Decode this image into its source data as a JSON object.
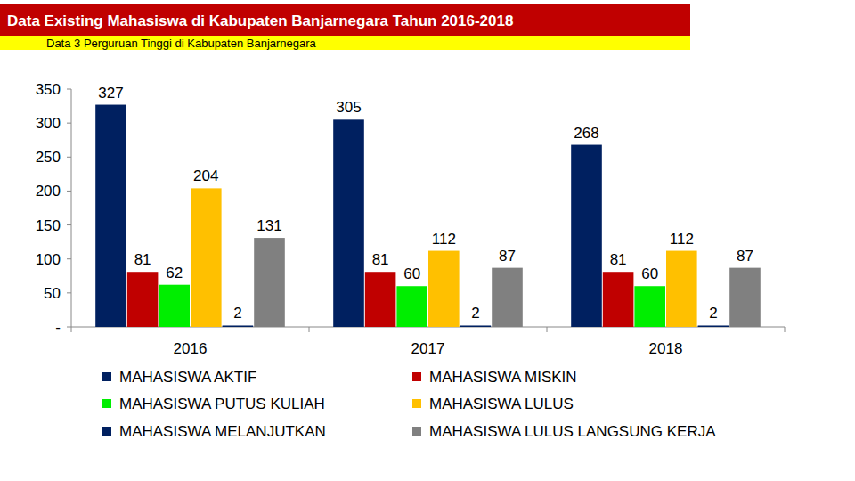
{
  "chart_data": {
    "type": "bar",
    "title": "Data Existing Mahasiswa di Kabupaten Banjarnegara Tahun 2016-2018",
    "subtitle": "Data 3 Perguruan Tinggi di Kabupaten Banjarnegara",
    "categories": [
      "2016",
      "2017",
      "2018"
    ],
    "series": [
      {
        "name": "MAHASISWA AKTIF",
        "color": "#002060",
        "values": [
          327,
          305,
          268
        ]
      },
      {
        "name": "MAHASISWA MISKIN",
        "color": "#c00000",
        "values": [
          81,
          81,
          81
        ]
      },
      {
        "name": "MAHASISWA PUTUS KULIAH",
        "color": "#00ee00",
        "values": [
          62,
          60,
          60
        ]
      },
      {
        "name": "MAHASISWA LULUS",
        "color": "#ffc000",
        "values": [
          204,
          112,
          112
        ]
      },
      {
        "name": "MAHASISWA MELANJUTKAN",
        "color": "#002060",
        "values": [
          2,
          2,
          2
        ]
      },
      {
        "name": "MAHASISWA LULUS LANGSUNG KERJA",
        "color": "#808080",
        "values": [
          131,
          87,
          87
        ]
      }
    ],
    "ylim": [
      0,
      350
    ],
    "yticks": [
      {
        "value": 0,
        "label": "-"
      },
      50,
      100,
      150,
      200,
      250,
      300,
      350
    ],
    "grid": false,
    "data_labels": true,
    "legend": "bottom"
  }
}
